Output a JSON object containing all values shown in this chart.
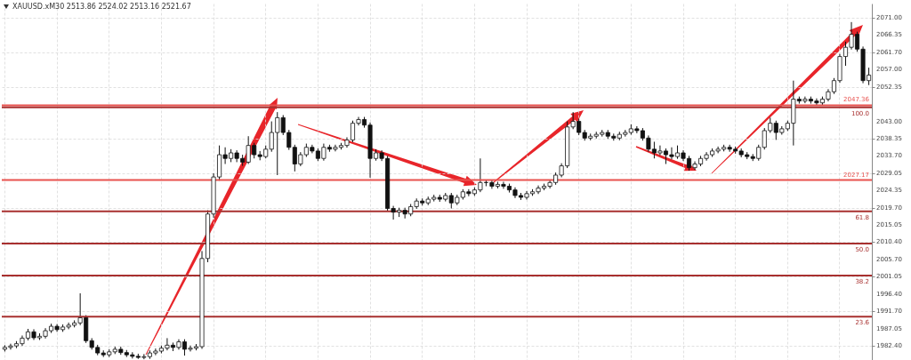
{
  "chart_data": {
    "type": "candlestick",
    "title": "XAUUSD.xM30 2513.86 2524.02 2513.16 2521.67",
    "categories": [
      null,
      null,
      null,
      null,
      null,
      null,
      null,
      null,
      null,
      null,
      null,
      null,
      null,
      null,
      null,
      null,
      null,
      null,
      null,
      null,
      null,
      null,
      null,
      null,
      null,
      null,
      null,
      null,
      null,
      null,
      null,
      null,
      null,
      null,
      null,
      null,
      null,
      null,
      null,
      null,
      null,
      null,
      null,
      null,
      null,
      null,
      null,
      null,
      null,
      null,
      null,
      null,
      null,
      null,
      null,
      null,
      null,
      null,
      null,
      null,
      null,
      null,
      null,
      null,
      null,
      null,
      null,
      null,
      null,
      null,
      null,
      null,
      null,
      null,
      null,
      null,
      null,
      null,
      null,
      null,
      null,
      null,
      null,
      null,
      null,
      null,
      null,
      null,
      null,
      null,
      null,
      null,
      null,
      null,
      null,
      null,
      null,
      null,
      null,
      null,
      null,
      null,
      null,
      null,
      null,
      null,
      null,
      null,
      null,
      null,
      null,
      null,
      null,
      null,
      null,
      null,
      null,
      null,
      null,
      null,
      null,
      null,
      null,
      null,
      null,
      null,
      null,
      null,
      null,
      null,
      null,
      null,
      null,
      null,
      null,
      null,
      null,
      null,
      null,
      null,
      null,
      null,
      null,
      null,
      null,
      null,
      null,
      null,
      null,
      null
    ],
    "ohlc": [
      [
        1981.5,
        1982.6,
        1980.9,
        1982.0
      ],
      [
        1982.0,
        1983.0,
        1981.4,
        1982.4
      ],
      [
        1982.4,
        1983.7,
        1981.8,
        1983.0
      ],
      [
        1983.0,
        1985.2,
        1982.4,
        1984.5
      ],
      [
        1984.5,
        1987.0,
        1983.9,
        1986.2
      ],
      [
        1986.2,
        1986.9,
        1984.0,
        1984.6
      ],
      [
        1984.6,
        1985.8,
        1984.0,
        1985.0
      ],
      [
        1985.0,
        1987.2,
        1984.4,
        1986.5
      ],
      [
        1986.5,
        1988.4,
        1985.9,
        1987.7
      ],
      [
        1987.7,
        1988.3,
        1986.2,
        1986.8
      ],
      [
        1986.8,
        1988.2,
        1986.2,
        1987.5
      ],
      [
        1987.5,
        1988.7,
        1986.9,
        1988.0
      ],
      [
        1988.0,
        1989.3,
        1987.4,
        1988.6
      ],
      [
        1988.6,
        1996.6,
        1988.0,
        1990.0
      ],
      [
        1990.0,
        1990.7,
        1983.2,
        1983.8
      ],
      [
        1983.8,
        1984.5,
        1981.4,
        1982.0
      ],
      [
        1982.0,
        1982.7,
        1979.9,
        1980.5
      ],
      [
        1980.5,
        1981.2,
        1979.4,
        1980.0
      ],
      [
        1980.0,
        1981.5,
        1979.4,
        1980.8
      ],
      [
        1980.8,
        1982.2,
        1980.2,
        1981.5
      ],
      [
        1981.5,
        1982.2,
        1980.0,
        1980.6
      ],
      [
        1980.6,
        1981.3,
        1979.4,
        1980.0
      ],
      [
        1980.0,
        1980.7,
        1979.0,
        1979.6
      ],
      [
        1979.6,
        1980.3,
        1978.9,
        1979.3
      ],
      [
        1979.3,
        1980.2,
        1978.8,
        1979.5
      ],
      [
        1979.5,
        1981.2,
        1978.9,
        1980.5
      ],
      [
        1980.5,
        1981.7,
        1979.9,
        1981.0
      ],
      [
        1981.0,
        1982.5,
        1980.4,
        1981.8
      ],
      [
        1981.8,
        1984.5,
        1981.2,
        1982.6
      ],
      [
        1982.6,
        1983.3,
        1981.0,
        1982.0
      ],
      [
        1982.0,
        1984.2,
        1981.4,
        1983.5
      ],
      [
        1983.5,
        1984.2,
        1979.8,
        1981.5
      ],
      [
        1981.5,
        1982.5,
        1980.9,
        1981.8
      ],
      [
        1981.8,
        1982.9,
        1981.2,
        1982.2
      ],
      [
        1982.2,
        2008.0,
        1981.6,
        2006.0
      ],
      [
        2006.0,
        2019.0,
        2005.0,
        2018.0
      ],
      [
        2018.0,
        2029.0,
        2017.0,
        2028.0
      ],
      [
        2028.0,
        2036.5,
        2027.0,
        2034.0
      ],
      [
        2034.0,
        2036.0,
        2031.5,
        2033.0
      ],
      [
        2033.0,
        2035.5,
        2032.0,
        2034.5
      ],
      [
        2034.5,
        2035.2,
        2032.0,
        2033.0
      ],
      [
        2033.0,
        2034.0,
        2031.0,
        2032.0
      ],
      [
        2032.0,
        2039.0,
        2031.5,
        2036.5
      ],
      [
        2036.5,
        2037.2,
        2033.0,
        2034.0
      ],
      [
        2034.0,
        2035.0,
        2032.5,
        2033.5
      ],
      [
        2033.5,
        2036.5,
        2033.0,
        2035.5
      ],
      [
        2035.5,
        2043.0,
        2034.8,
        2040.0
      ],
      [
        2040.0,
        2045.5,
        2028.5,
        2044.0
      ],
      [
        2044.0,
        2044.7,
        2039.3,
        2040.0
      ],
      [
        2040.0,
        2040.7,
        2035.3,
        2036.0
      ],
      [
        2036.0,
        2036.7,
        2029.5,
        2031.5
      ],
      [
        2031.5,
        2034.7,
        2030.9,
        2034.0
      ],
      [
        2034.0,
        2037.0,
        2033.4,
        2036.0
      ],
      [
        2036.0,
        2036.7,
        2034.4,
        2035.0
      ],
      [
        2035.0,
        2035.7,
        2032.3,
        2033.0
      ],
      [
        2033.0,
        2037.0,
        2032.4,
        2036.0
      ],
      [
        2036.0,
        2036.7,
        2034.8,
        2035.5
      ],
      [
        2035.5,
        2036.7,
        2034.9,
        2036.0
      ],
      [
        2036.0,
        2037.2,
        2035.4,
        2036.5
      ],
      [
        2036.5,
        2038.7,
        2035.9,
        2038.0
      ],
      [
        2038.0,
        2043.2,
        2037.4,
        2042.5
      ],
      [
        2042.5,
        2044.2,
        2041.9,
        2043.5
      ],
      [
        2043.5,
        2044.2,
        2041.3,
        2042.0
      ],
      [
        2042.0,
        2042.7,
        2027.8,
        2033.0
      ],
      [
        2033.0,
        2035.5,
        2032.4,
        2034.5
      ],
      [
        2034.5,
        2035.2,
        2032.3,
        2033.0
      ],
      [
        2033.0,
        2033.7,
        2018.8,
        2019.5
      ],
      [
        2019.5,
        2020.2,
        2016.5,
        2018.5
      ],
      [
        2018.5,
        2019.7,
        2017.2,
        2019.0
      ],
      [
        2019.0,
        2019.7,
        2016.8,
        2018.0
      ],
      [
        2018.0,
        2020.7,
        2017.4,
        2020.0
      ],
      [
        2020.0,
        2022.2,
        2019.4,
        2021.5
      ],
      [
        2021.5,
        2022.2,
        2020.3,
        2021.0
      ],
      [
        2021.0,
        2022.7,
        2020.4,
        2022.0
      ],
      [
        2022.0,
        2023.2,
        2021.4,
        2022.5
      ],
      [
        2022.5,
        2023.2,
        2021.3,
        2022.0
      ],
      [
        2022.0,
        2023.7,
        2021.4,
        2023.0
      ],
      [
        2023.0,
        2023.7,
        2019.5,
        2021.0
      ],
      [
        2021.0,
        2023.2,
        2020.4,
        2022.5
      ],
      [
        2022.5,
        2024.7,
        2021.9,
        2024.0
      ],
      [
        2024.0,
        2024.7,
        2022.8,
        2023.5
      ],
      [
        2023.5,
        2025.2,
        2022.9,
        2024.5
      ],
      [
        2024.5,
        2033.0,
        2023.9,
        2026.5
      ],
      [
        2026.5,
        2027.2,
        2025.5,
        2026.5
      ],
      [
        2026.5,
        2027.2,
        2024.8,
        2025.5
      ],
      [
        2025.5,
        2026.7,
        2024.9,
        2026.0
      ],
      [
        2026.0,
        2026.7,
        2024.8,
        2025.5
      ],
      [
        2025.5,
        2026.2,
        2023.8,
        2024.5
      ],
      [
        2024.5,
        2025.2,
        2022.3,
        2023.0
      ],
      [
        2023.0,
        2023.7,
        2021.8,
        2022.5
      ],
      [
        2022.5,
        2024.2,
        2021.9,
        2023.5
      ],
      [
        2023.5,
        2024.7,
        2022.9,
        2024.0
      ],
      [
        2024.0,
        2025.7,
        2023.4,
        2025.0
      ],
      [
        2025.0,
        2026.2,
        2024.4,
        2025.5
      ],
      [
        2025.5,
        2027.2,
        2024.9,
        2026.5
      ],
      [
        2026.5,
        2029.2,
        2025.9,
        2028.5
      ],
      [
        2028.5,
        2031.7,
        2027.9,
        2031.0
      ],
      [
        2031.0,
        2043.0,
        2030.4,
        2041.5
      ],
      [
        2041.5,
        2045.5,
        2040.9,
        2043.0
      ],
      [
        2043.0,
        2043.7,
        2039.3,
        2040.0
      ],
      [
        2040.0,
        2040.7,
        2037.8,
        2038.5
      ],
      [
        2038.5,
        2039.7,
        2037.9,
        2039.0
      ],
      [
        2039.0,
        2040.2,
        2038.4,
        2039.5
      ],
      [
        2039.5,
        2040.7,
        2038.9,
        2040.0
      ],
      [
        2040.0,
        2040.7,
        2038.3,
        2039.0
      ],
      [
        2039.0,
        2039.7,
        2037.8,
        2038.5
      ],
      [
        2038.5,
        2040.2,
        2037.9,
        2039.5
      ],
      [
        2039.5,
        2040.7,
        2038.9,
        2040.0
      ],
      [
        2040.0,
        2042.2,
        2039.4,
        2041.0
      ],
      [
        2041.0,
        2041.7,
        2039.8,
        2040.5
      ],
      [
        2040.5,
        2041.2,
        2037.8,
        2038.5
      ],
      [
        2038.5,
        2039.2,
        2034.8,
        2035.5
      ],
      [
        2035.5,
        2037.5,
        2033.0,
        2034.5
      ],
      [
        2034.5,
        2036.5,
        2033.9,
        2035.0
      ],
      [
        2035.0,
        2035.7,
        2031.5,
        2034.0
      ],
      [
        2034.0,
        2036.0,
        2032.8,
        2033.5
      ],
      [
        2033.5,
        2036.5,
        2032.9,
        2034.5
      ],
      [
        2034.5,
        2035.2,
        2032.3,
        2033.0
      ],
      [
        2033.0,
        2033.7,
        2029.7,
        2030.5
      ],
      [
        2030.5,
        2032.2,
        2029.9,
        2031.5
      ],
      [
        2031.5,
        2033.7,
        2030.9,
        2033.0
      ],
      [
        2033.0,
        2034.7,
        2032.4,
        2034.0
      ],
      [
        2034.0,
        2035.7,
        2033.4,
        2035.0
      ],
      [
        2035.0,
        2036.2,
        2034.4,
        2035.5
      ],
      [
        2035.5,
        2036.7,
        2034.9,
        2036.0
      ],
      [
        2036.0,
        2036.7,
        2034.8,
        2035.5
      ],
      [
        2035.5,
        2036.2,
        2034.3,
        2035.0
      ],
      [
        2035.0,
        2035.7,
        2033.3,
        2034.0
      ],
      [
        2034.0,
        2034.7,
        2032.8,
        2033.5
      ],
      [
        2033.5,
        2034.2,
        2032.3,
        2033.0
      ],
      [
        2033.0,
        2036.7,
        2032.4,
        2036.0
      ],
      [
        2036.0,
        2041.2,
        2035.4,
        2040.5
      ],
      [
        2040.5,
        2044.0,
        2039.9,
        2042.5
      ],
      [
        2042.5,
        2043.2,
        2038.0,
        2040.0
      ],
      [
        2040.0,
        2041.7,
        2039.4,
        2041.0
      ],
      [
        2041.0,
        2043.2,
        2040.4,
        2042.5
      ],
      [
        2042.5,
        2054.0,
        2036.5,
        2049.0
      ],
      [
        2049.0,
        2049.7,
        2047.8,
        2048.5
      ],
      [
        2048.5,
        2049.7,
        2047.9,
        2049.0
      ],
      [
        2049.0,
        2049.7,
        2047.8,
        2048.5
      ],
      [
        2048.5,
        2049.2,
        2047.3,
        2048.0
      ],
      [
        2048.0,
        2049.7,
        2047.4,
        2049.0
      ],
      [
        2049.0,
        2051.7,
        2048.4,
        2051.0
      ],
      [
        2051.0,
        2054.7,
        2050.4,
        2054.0
      ],
      [
        2054.0,
        2061.2,
        2053.4,
        2060.5
      ],
      [
        2060.5,
        2064.5,
        2058.0,
        2063.0
      ],
      [
        2063.0,
        2069.8,
        2062.4,
        2066.5
      ],
      [
        2066.5,
        2067.2,
        2061.8,
        2062.5
      ],
      [
        2062.5,
        2063.2,
        2053.3,
        2054.0
      ],
      [
        2054.0,
        2057.5,
        2052.8,
        2055.5
      ]
    ],
    "ylim": [
      1978.6,
      2074.8
    ],
    "yticks": [
      {
        "value": 2071,
        "label": "2071.00"
      },
      2066.35,
      {
        "value": 2061.7,
        "label": "2061.70"
      },
      {
        "value": 2057,
        "label": "2057.00"
      },
      2052.35,
      {
        "value": 2043,
        "label": "2043.00"
      },
      2038.35,
      {
        "value": 2033.7,
        "label": "2033.70"
      },
      2029.05,
      2024.35,
      {
        "value": 2019.7,
        "label": "2019.70"
      },
      2015.05,
      {
        "value": 2010.4,
        "label": "2010.40"
      },
      {
        "value": 2005.7,
        "label": "2005.70"
      },
      2001.05,
      {
        "value": 1996.4,
        "label": "1996.40"
      },
      {
        "value": 1991.7,
        "label": "1991.70"
      },
      1987.05,
      {
        "value": 1982.4,
        "label": "1982.40"
      }
    ],
    "grid": true,
    "tick_labels": "y",
    "ref_lines": [
      {
        "axis": "y",
        "value": 2047.36,
        "label": "2047.36",
        "color": "#e8524f"
      },
      {
        "axis": "y",
        "value": 2046.8,
        "color": "#a8302f"
      },
      {
        "axis": "y",
        "value": 2027.17,
        "label": "2027.17",
        "color": "#e8524f"
      },
      {
        "axis": "y",
        "value": 2018.7,
        "color": "#a8302f"
      },
      {
        "axis": "y",
        "value": 2010.0,
        "color": "#a8302f"
      },
      {
        "axis": "y",
        "value": 2001.4,
        "color": "#a8302f"
      },
      {
        "axis": "y",
        "value": 1990.3,
        "color": "#a8302f"
      }
    ],
    "annotations": [
      {
        "text": "100.0",
        "y": 2046.8
      },
      {
        "text": "61.8",
        "y": 2018.7
      },
      {
        "text": "50.0",
        "y": 2010.0
      },
      {
        "text": "38.2",
        "y": 2001.4
      },
      {
        "text": "23.6",
        "y": 1990.3
      }
    ]
  }
}
